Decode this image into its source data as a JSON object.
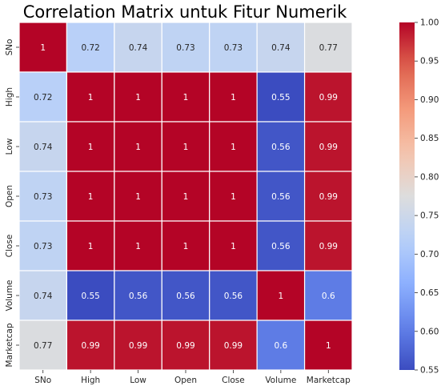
{
  "chart_data": {
    "type": "heatmap",
    "title": "Correlation Matrix untuk Fitur Numerik",
    "xlabel": "",
    "ylabel": "",
    "row_labels": [
      "SNo",
      "High",
      "Low",
      "Open",
      "Close",
      "Volume",
      "Marketcap"
    ],
    "col_labels": [
      "SNo",
      "High",
      "Low",
      "Open",
      "Close",
      "Volume",
      "Marketcap"
    ],
    "values": [
      [
        1,
        0.72,
        0.74,
        0.73,
        0.73,
        0.74,
        0.77
      ],
      [
        0.72,
        1,
        1,
        1,
        1,
        0.55,
        0.99
      ],
      [
        0.74,
        1,
        1,
        1,
        1,
        0.56,
        0.99
      ],
      [
        0.73,
        1,
        1,
        1,
        1,
        0.56,
        0.99
      ],
      [
        0.73,
        1,
        1,
        1,
        1,
        0.56,
        0.99
      ],
      [
        0.74,
        0.55,
        0.56,
        0.56,
        0.56,
        1,
        0.6
      ],
      [
        0.77,
        0.99,
        0.99,
        0.99,
        0.99,
        0.6,
        1
      ]
    ],
    "cell_labels": [
      [
        "1",
        "0.72",
        "0.74",
        "0.73",
        "0.73",
        "0.74",
        "0.77"
      ],
      [
        "0.72",
        "1",
        "1",
        "1",
        "1",
        "0.55",
        "0.99"
      ],
      [
        "0.74",
        "1",
        "1",
        "1",
        "1",
        "0.56",
        "0.99"
      ],
      [
        "0.73",
        "1",
        "1",
        "1",
        "1",
        "0.56",
        "0.99"
      ],
      [
        "0.73",
        "1",
        "1",
        "1",
        "1",
        "0.56",
        "0.99"
      ],
      [
        "0.74",
        "0.55",
        "0.56",
        "0.56",
        "0.56",
        "1",
        "0.6"
      ],
      [
        "0.77",
        "0.99",
        "0.99",
        "0.99",
        "0.99",
        "0.6",
        "1"
      ]
    ],
    "colormap": "coolwarm",
    "vmin": 0.55,
    "vmax": 1.0,
    "colorbar_ticks": [
      0.55,
      0.6,
      0.65,
      0.7,
      0.75,
      0.8,
      0.85,
      0.9,
      0.95,
      1.0
    ],
    "colorbar_tick_labels": [
      "0.55",
      "0.60",
      "0.65",
      "0.70",
      "0.75",
      "0.80",
      "0.85",
      "0.90",
      "0.95",
      "1.00"
    ],
    "grid": false,
    "colors": {
      "cell_border": "#ffffff",
      "dark_text": "#262626",
      "light_text": "#ffffff"
    }
  }
}
